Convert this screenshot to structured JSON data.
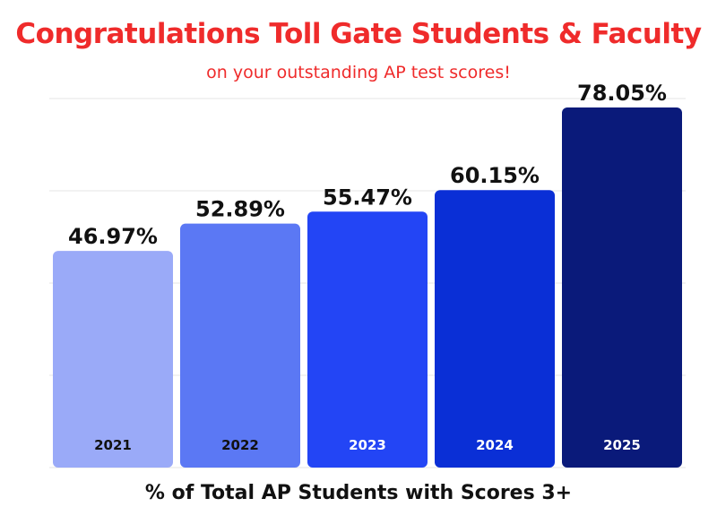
{
  "header": {
    "title": "Congratulations Toll Gate Students & Faculty",
    "subtitle": "on your outstanding AP test scores!"
  },
  "colors": {
    "title": "#ef2b2b",
    "bars": [
      "#9aaaf8",
      "#5b78f4",
      "#2345f5",
      "#0a2fd6",
      "#0a1a7a"
    ],
    "year_label_text": [
      "#111111",
      "#111111",
      "#ffffff",
      "#ffffff",
      "#ffffff"
    ],
    "gridline": "#e6e6e6"
  },
  "chart_data": {
    "type": "bar",
    "title": "Congratulations Toll Gate Students & Faculty",
    "subtitle": "on your outstanding AP test scores!",
    "xlabel": "% of Total AP Students with Scores 3+",
    "ylabel": "",
    "categories": [
      "2021",
      "2022",
      "2023",
      "2024",
      "2025"
    ],
    "values": [
      46.97,
      52.89,
      55.47,
      60.15,
      78.05
    ],
    "value_labels": [
      "46.97%",
      "52.89%",
      "55.47%",
      "60.15%",
      "78.05%"
    ],
    "ylim": [
      0,
      80
    ],
    "grid": true,
    "legend": "none"
  }
}
